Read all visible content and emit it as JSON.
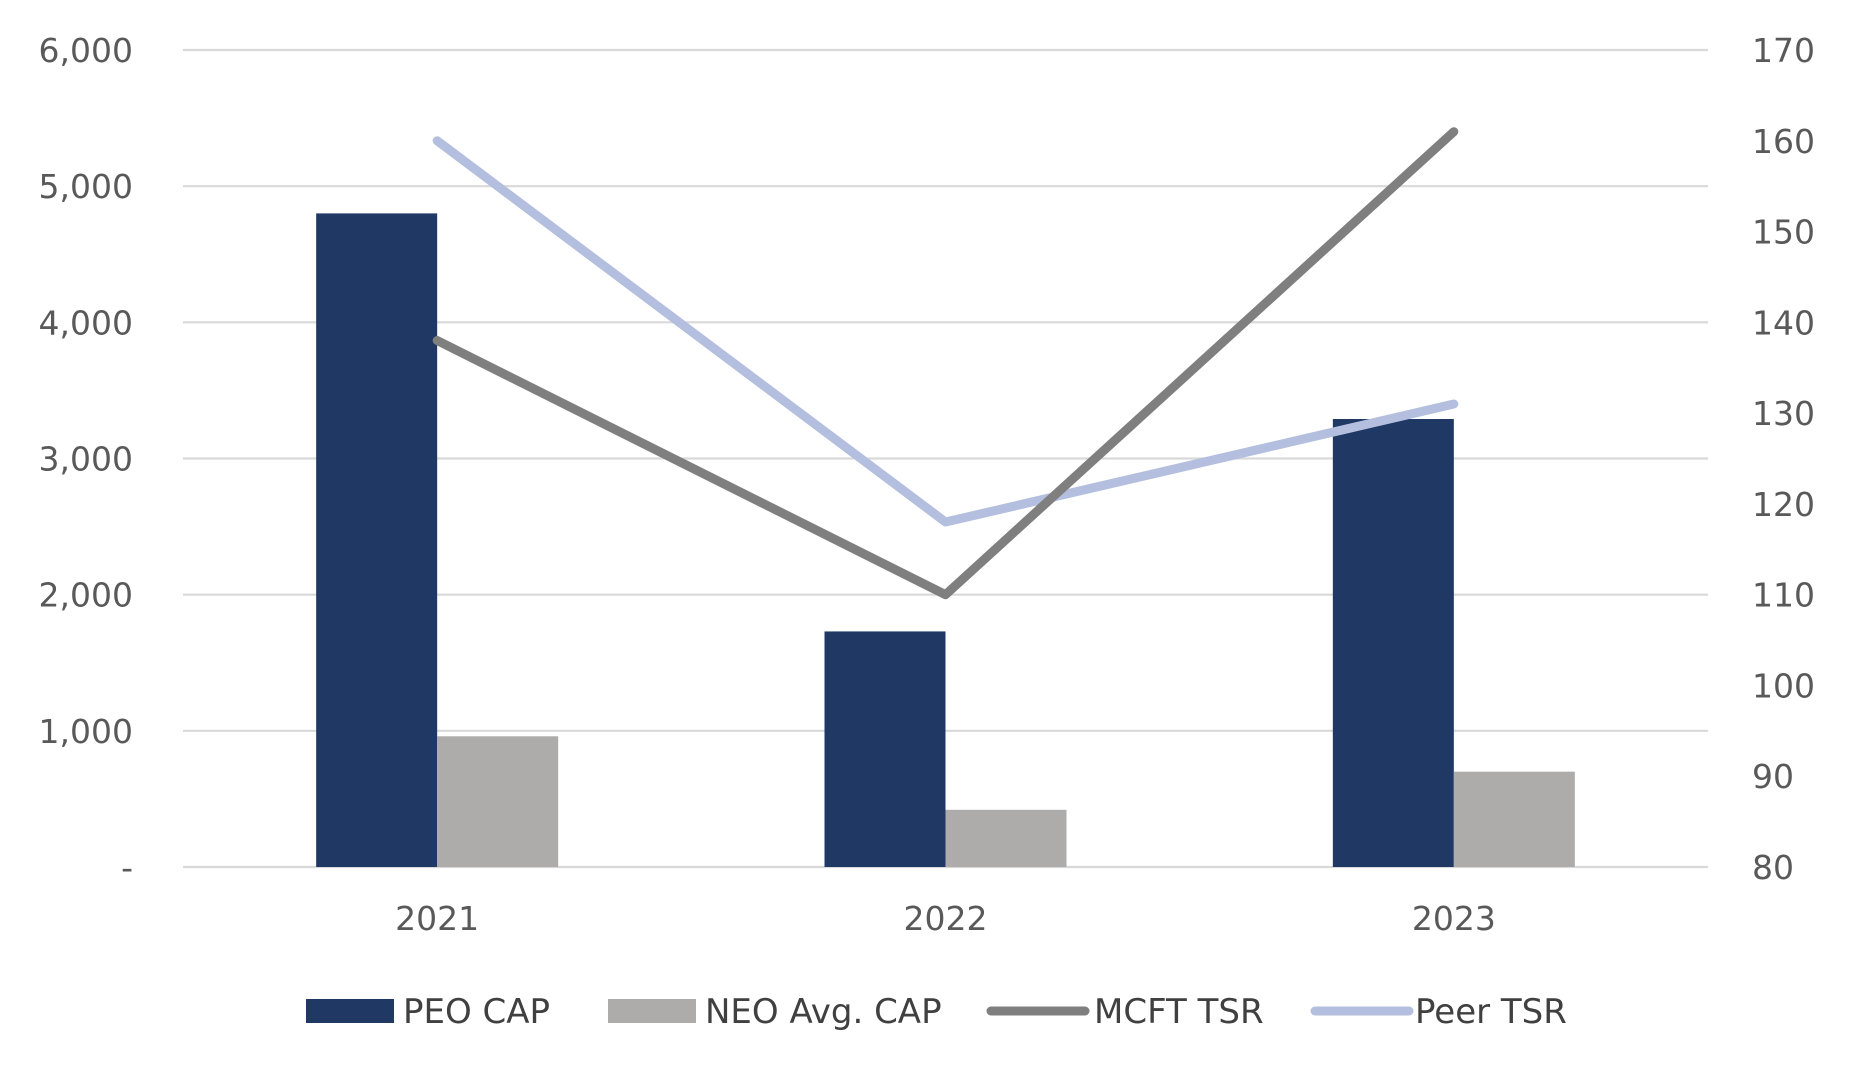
{
  "chart_data": {
    "type": "bar",
    "title": "",
    "xlabel": "",
    "ylabel": "",
    "y2label": "",
    "categories": [
      "2021",
      "2022",
      "2023"
    ],
    "ylim": [
      0,
      6000
    ],
    "y2lim": [
      80,
      170
    ],
    "y_ticks": [
      {
        "value": 0,
        "label": "-"
      },
      {
        "value": 1000,
        "label": "1,000"
      },
      {
        "value": 2000,
        "label": "2,000"
      },
      {
        "value": 3000,
        "label": "3,000"
      },
      {
        "value": 4000,
        "label": "4,000"
      },
      {
        "value": 5000,
        "label": "5,000"
      },
      {
        "value": 6000,
        "label": "6,000"
      }
    ],
    "y2_ticks": [
      {
        "value": 80,
        "label": "80"
      },
      {
        "value": 90,
        "label": "90"
      },
      {
        "value": 100,
        "label": "100"
      },
      {
        "value": 110,
        "label": "110"
      },
      {
        "value": 120,
        "label": "120"
      },
      {
        "value": 130,
        "label": "130"
      },
      {
        "value": 140,
        "label": "140"
      },
      {
        "value": 150,
        "label": "150"
      },
      {
        "value": 160,
        "label": "160"
      },
      {
        "value": 170,
        "label": "170"
      }
    ],
    "grid": true,
    "legend_position": "bottom",
    "series": [
      {
        "name": "PEO CAP",
        "type": "bar",
        "axis": "left",
        "color": "#203864",
        "values": [
          4800,
          1730,
          3290
        ]
      },
      {
        "name": "NEO Avg. CAP",
        "type": "bar",
        "axis": "left",
        "color": "#AEABAB",
        "values": [
          960,
          420,
          700
        ]
      },
      {
        "name": "MCFT TSR",
        "type": "line",
        "axis": "right",
        "color": "#7F7F7F",
        "values": [
          138,
          110,
          161
        ]
      },
      {
        "name": "Peer TSR",
        "type": "line",
        "axis": "right",
        "color": "#B4BFDF",
        "values": [
          160,
          118,
          131
        ]
      }
    ]
  }
}
